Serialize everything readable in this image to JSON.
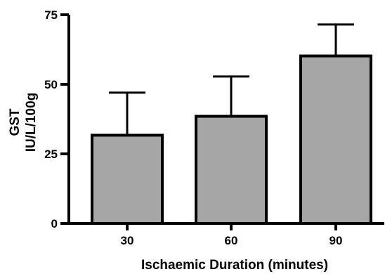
{
  "chart_data": {
    "type": "bar",
    "categories": [
      "30",
      "60",
      "90"
    ],
    "values": [
      31.7,
      38.5,
      60.2
    ],
    "error_upper": [
      47.0,
      52.8,
      71.5
    ],
    "xlabel": "Ischaemic Duration (minutes)",
    "ylabel_lines": [
      "GST",
      "IU/L/100g"
    ],
    "ylim": [
      0,
      75
    ],
    "yticks": [
      0,
      25,
      50,
      75
    ],
    "grid": false,
    "bar_color": "#a6a6a6",
    "edge_color": "#000000"
  }
}
